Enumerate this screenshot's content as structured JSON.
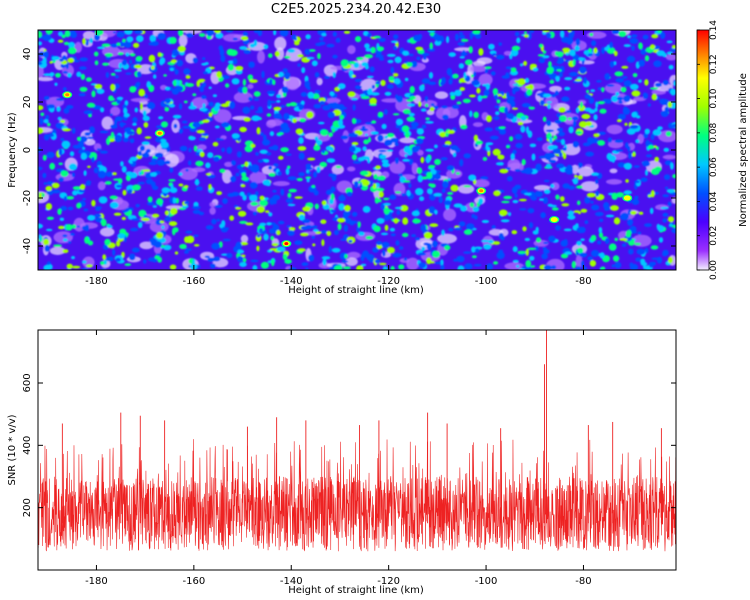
{
  "title": "C2E5.2025.234.20.42.E30",
  "colors": {
    "snr_line": "#ee2222",
    "axis": "#000000",
    "background": "#ffffff",
    "colormap": [
      "#f4f0ff",
      "#9b30ff",
      "#4b00ff",
      "#0050ff",
      "#00c8ff",
      "#00ff80",
      "#a0ff00",
      "#ffff00",
      "#ff8000",
      "#ff0000"
    ]
  },
  "chart_data": [
    {
      "id": "spectrogram",
      "type": "heatmap",
      "xlabel": "Height of straight line (km)",
      "ylabel": "Frequency (Hz)",
      "xlim": [
        -192,
        -61
      ],
      "ylim": [
        -50,
        50
      ],
      "xticks": [
        -180,
        -160,
        -140,
        -120,
        -100,
        -80
      ],
      "xtick_labels": [
        "-180",
        "-160",
        "-140",
        "-120",
        "-100",
        "-80"
      ],
      "yticks": [
        -40,
        -20,
        0,
        20,
        40
      ],
      "ytick_labels": [
        "-40",
        "-20",
        "0",
        "20",
        "40"
      ],
      "colorbar": {
        "label": "Normalized spectral amplitude",
        "range": [
          0,
          0.14
        ],
        "ticks": [
          0,
          0.02,
          0.04,
          0.06,
          0.08,
          0.1,
          0.12,
          0.14
        ],
        "tick_labels": [
          "0.00",
          "0.02",
          "0.04",
          "0.06",
          "0.08",
          "0.10",
          "0.12",
          "0.14"
        ]
      },
      "notable_peaks": [
        {
          "x": -186,
          "y": 23,
          "value": 0.13
        },
        {
          "x": -167,
          "y": 7,
          "value": 0.13
        },
        {
          "x": -141,
          "y": -39,
          "value": 0.14
        },
        {
          "x": -101,
          "y": -17,
          "value": 0.13
        },
        {
          "x": -86,
          "y": -29,
          "value": 0.11
        },
        {
          "x": -71,
          "y": -20,
          "value": 0.11
        }
      ]
    },
    {
      "id": "snr",
      "type": "line",
      "xlabel": "Height of straight line (km)",
      "ylabel": "SNR (10 * v/v)",
      "xlim": [
        -192,
        -61
      ],
      "ylim": [
        0,
        770
      ],
      "xticks": [
        -180,
        -160,
        -140,
        -120,
        -100,
        -80
      ],
      "xtick_labels": [
        "-180",
        "-160",
        "-140",
        "-120",
        "-100",
        "-80"
      ],
      "yticks": [
        200,
        400,
        600
      ],
      "ytick_labels": [
        "200",
        "400",
        "600"
      ],
      "series": [
        {
          "name": "SNR",
          "baseline_range": [
            60,
            300
          ],
          "typical_peak": 420,
          "spikes": [
            {
              "x": -187,
              "value": 470
            },
            {
              "x": -175,
              "value": 505
            },
            {
              "x": -171,
              "value": 495
            },
            {
              "x": -166,
              "value": 480
            },
            {
              "x": -149,
              "value": 460
            },
            {
              "x": -143,
              "value": 490
            },
            {
              "x": -137,
              "value": 480
            },
            {
              "x": -126,
              "value": 465
            },
            {
              "x": -122,
              "value": 480
            },
            {
              "x": -112,
              "value": 505
            },
            {
              "x": -108,
              "value": 470
            },
            {
              "x": -97,
              "value": 455
            },
            {
              "x": -88,
              "value": 660
            },
            {
              "x": -87.6,
              "value": 770
            },
            {
              "x": -79,
              "value": 465
            },
            {
              "x": -74,
              "value": 475
            },
            {
              "x": -64,
              "value": 455
            }
          ]
        }
      ]
    }
  ]
}
